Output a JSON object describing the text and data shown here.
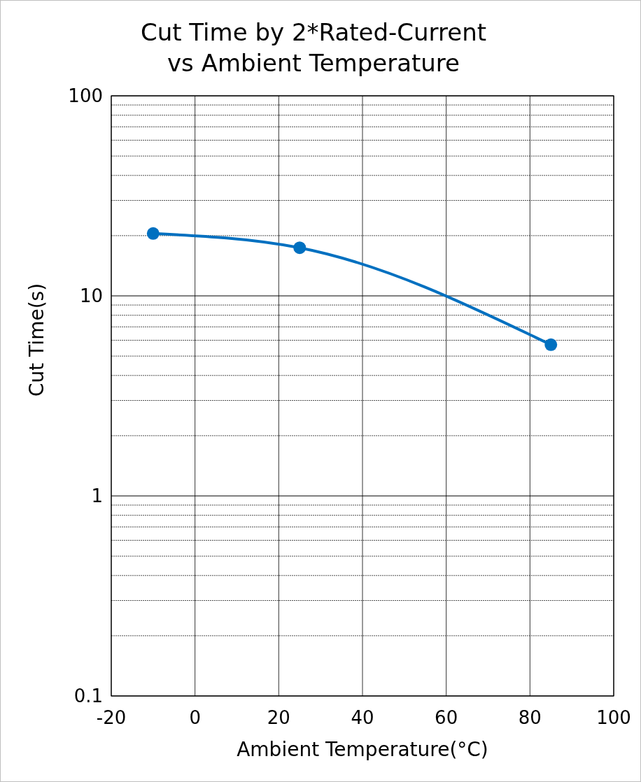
{
  "chart_data": {
    "type": "line",
    "title": "Cut Time by 2*Rated-Current vs Ambient Temperature",
    "xlabel": "Ambient Temperature(°C)",
    "ylabel": "Cut Time(s)",
    "x": [
      -10,
      25,
      85
    ],
    "series": [
      {
        "color": "#0070c0",
        "values": [
          20.5,
          17.4,
          5.7
        ]
      }
    ],
    "xlim": [
      -20,
      100
    ],
    "xticks": [
      -20,
      0,
      20,
      40,
      60,
      80,
      100
    ],
    "ylim": [
      0.1,
      100
    ],
    "yticks": [
      {
        "value": 0.1,
        "label": "0.1"
      },
      {
        "value": 0.2,
        "label": null
      },
      {
        "value": 0.3,
        "label": null
      },
      {
        "value": 0.4,
        "label": null
      },
      {
        "value": 0.5,
        "label": null
      },
      {
        "value": 0.6,
        "label": null
      },
      {
        "value": 0.7,
        "label": null
      },
      {
        "value": 0.8,
        "label": null
      },
      {
        "value": 0.9,
        "label": null
      },
      1,
      {
        "value": 2,
        "label": null
      },
      {
        "value": 3,
        "label": null
      },
      {
        "value": 4,
        "label": null
      },
      {
        "value": 5,
        "label": null
      },
      {
        "value": 6,
        "label": null
      },
      {
        "value": 7,
        "label": null
      },
      {
        "value": 8,
        "label": null
      },
      {
        "value": 9,
        "label": null
      },
      10,
      {
        "value": 20,
        "label": null
      },
      {
        "value": 30,
        "label": null
      },
      {
        "value": 40,
        "label": null
      },
      {
        "value": 50,
        "label": null
      },
      {
        "value": 60,
        "label": null
      },
      {
        "value": 70,
        "label": null
      },
      {
        "value": 80,
        "label": null
      },
      {
        "value": 90,
        "label": null
      },
      100
    ],
    "log": "y",
    "grid": true,
    "marker": "circle",
    "line_style": "solid"
  }
}
